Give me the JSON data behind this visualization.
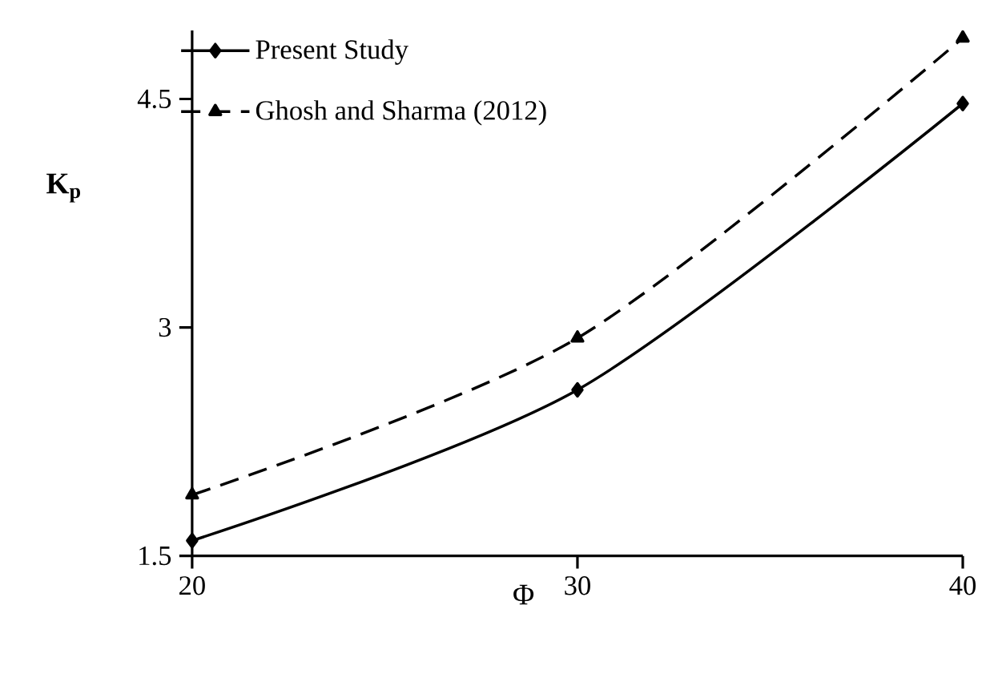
{
  "chart_data": {
    "type": "line",
    "xlabel": "Φ",
    "ylabel": "K$_{p}$",
    "x": [
      20,
      30,
      40
    ],
    "xlim": [
      20,
      40
    ],
    "xticks": [
      20,
      30,
      40
    ],
    "ylim": [
      1.5,
      4.95
    ],
    "yticks": [
      1.5,
      3,
      4.5
    ],
    "series": [
      {
        "name": "Present Study",
        "color": "#000000",
        "marker": "diamond",
        "line_style": "solid",
        "values": [
          1.6,
          2.59,
          4.47
        ]
      },
      {
        "name": "Ghosh and Sharma (2012)",
        "color": "#000000",
        "marker": "triangle",
        "line_style": "dashed",
        "values": [
          1.9,
          2.93,
          4.9
        ]
      }
    ],
    "grid": false,
    "legend": "top left"
  }
}
